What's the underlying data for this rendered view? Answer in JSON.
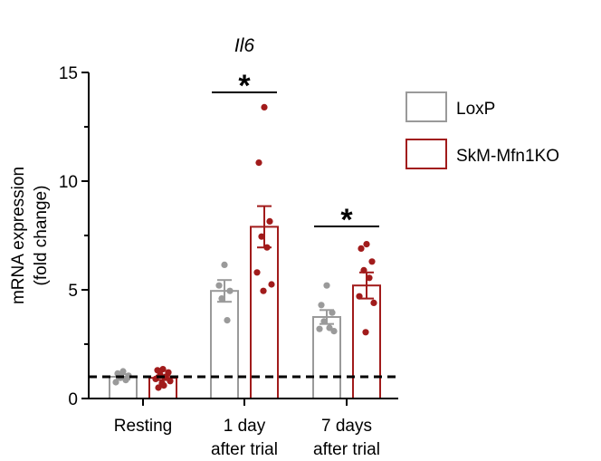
{
  "chart_data": {
    "type": "bar",
    "title": "Il6",
    "ylabel_line1": "mRNA expression",
    "ylabel_line2": "(fold change)",
    "ylim": [
      0,
      15
    ],
    "yticks": [
      0,
      5,
      10,
      15
    ],
    "reference_line": 1,
    "categories": [
      {
        "line1": "Resting",
        "line2": ""
      },
      {
        "line1": "1 day",
        "line2": "after trial"
      },
      {
        "line1": "7 days",
        "line2": "after trial"
      }
    ],
    "series": [
      {
        "name": "LoxP",
        "color": "#9a9a9a",
        "values": [
          1.0,
          4.95,
          3.75
        ],
        "errors": [
          0.12,
          0.5,
          0.32
        ],
        "points": [
          [
            1.25,
            1.15,
            1.05,
            0.95,
            0.85,
            0.75
          ],
          [
            6.15,
            5.2,
            4.95,
            4.6,
            3.6
          ],
          [
            5.2,
            4.3,
            3.95,
            3.55,
            3.25,
            3.2,
            3.1
          ]
        ]
      },
      {
        "name": "SkM-Mfn1KO",
        "color": "#a11b1b",
        "values": [
          0.95,
          7.9,
          5.2
        ],
        "errors": [
          0.1,
          0.95,
          0.6
        ],
        "points": [
          [
            1.35,
            1.3,
            1.2,
            1.1,
            1.0,
            0.9,
            0.8,
            0.7,
            0.6,
            0.5
          ],
          [
            13.4,
            10.85,
            8.15,
            7.45,
            6.95,
            5.8,
            5.25,
            4.95
          ],
          [
            7.1,
            6.9,
            6.3,
            5.9,
            5.55,
            4.7,
            4.4,
            3.05
          ]
        ]
      }
    ],
    "significance": [
      {
        "category_index": 1,
        "label": "*"
      },
      {
        "category_index": 2,
        "label": "*"
      }
    ]
  }
}
